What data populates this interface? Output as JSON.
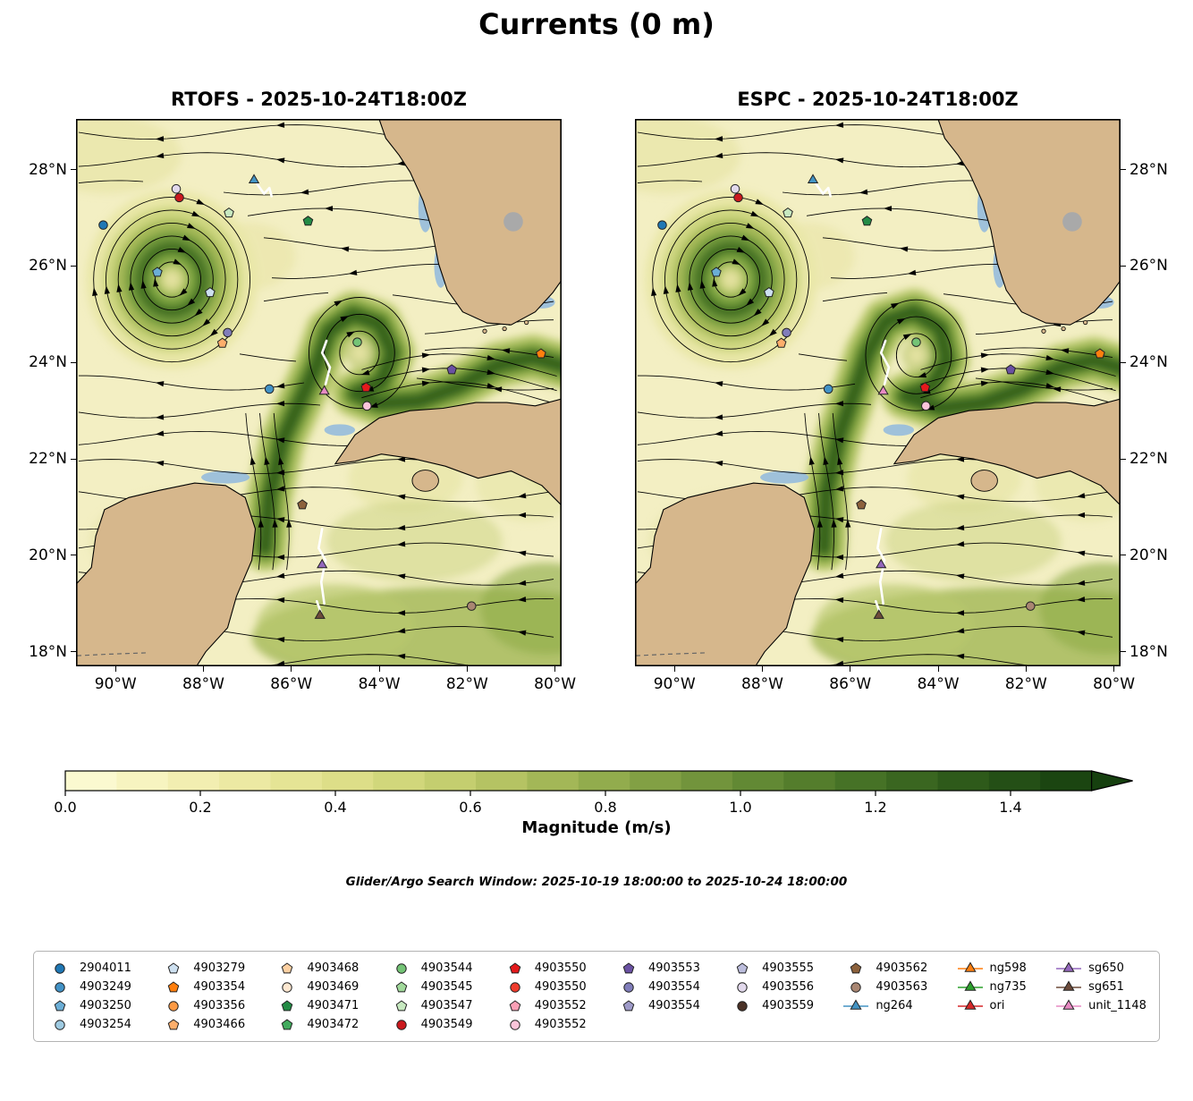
{
  "title": "Currents (0 m)",
  "panels": [
    {
      "title": "RTOFS - 2025-10-24T18:00Z"
    },
    {
      "title": "ESPC - 2025-10-24T18:00Z"
    }
  ],
  "axes": {
    "lon_view_w": [
      90.9,
      79.85
    ],
    "lat_view": [
      29.05,
      17.7
    ],
    "lon_ticks": [
      {
        "value": 90,
        "label": "90°W"
      },
      {
        "value": 88,
        "label": "88°W"
      },
      {
        "value": 86,
        "label": "86°W"
      },
      {
        "value": 84,
        "label": "84°W"
      },
      {
        "value": 82,
        "label": "82°W"
      },
      {
        "value": 80,
        "label": "80°W"
      }
    ],
    "lat_ticks": [
      {
        "value": 28,
        "label": "28°N"
      },
      {
        "value": 26,
        "label": "26°N"
      },
      {
        "value": 24,
        "label": "24°N"
      },
      {
        "value": 22,
        "label": "22°N"
      },
      {
        "value": 20,
        "label": "20°N"
      },
      {
        "value": 18,
        "label": "18°N"
      }
    ]
  },
  "colorbar": {
    "label": "Magnitude (m/s)",
    "bar_max": 1.52,
    "ticks": [
      {
        "value": 0.0,
        "label": "0.0"
      },
      {
        "value": 0.2,
        "label": "0.2"
      },
      {
        "value": 0.4,
        "label": "0.4"
      },
      {
        "value": 0.6,
        "label": "0.6"
      },
      {
        "value": 0.8,
        "label": "0.8"
      },
      {
        "value": 1.0,
        "label": "1.0"
      },
      {
        "value": 1.2,
        "label": "1.2"
      },
      {
        "value": 1.4,
        "label": "1.4"
      }
    ],
    "stops": [
      [
        0.0,
        "#fdfcd8"
      ],
      [
        0.15,
        "#f5f1b9"
      ],
      [
        0.3,
        "#eae79c"
      ],
      [
        0.45,
        "#d9dc82"
      ],
      [
        0.6,
        "#bfca6a"
      ],
      [
        0.75,
        "#9db353"
      ],
      [
        0.9,
        "#7c9c41"
      ],
      [
        1.05,
        "#5d8531"
      ],
      [
        1.2,
        "#426f24"
      ],
      [
        1.35,
        "#2b5719"
      ],
      [
        1.52,
        "#16400f"
      ]
    ]
  },
  "search_window_text": "Glider/Argo Search Window: 2025-10-19 18:00:00 to 2025-10-24 18:00:00",
  "legend": {
    "columns": [
      [
        {
          "label": "2904011",
          "shape": "circle",
          "color": "#1f77b4"
        },
        {
          "label": "4903249",
          "shape": "circle",
          "color": "#4292c6"
        },
        {
          "label": "4903250",
          "shape": "pentagon",
          "color": "#6baed6"
        },
        {
          "label": "4903254",
          "shape": "circle",
          "color": "#9ecae1"
        }
      ],
      [
        {
          "label": "4903279",
          "shape": "pentagon",
          "color": "#cde0f0"
        },
        {
          "label": "4903354",
          "shape": "pentagon",
          "color": "#ff7f0e"
        },
        {
          "label": "4903356",
          "shape": "circle",
          "color": "#fd9a44"
        },
        {
          "label": "4903466",
          "shape": "pentagon",
          "color": "#fdae6b"
        }
      ],
      [
        {
          "label": "4903468",
          "shape": "pentagon",
          "color": "#fdd0a2"
        },
        {
          "label": "4903469",
          "shape": "circle",
          "color": "#fee8d1"
        },
        {
          "label": "4903471",
          "shape": "pentagon",
          "color": "#238b45"
        },
        {
          "label": "4903472",
          "shape": "pentagon",
          "color": "#41ab5d"
        }
      ],
      [
        {
          "label": "4903544",
          "shape": "circle",
          "color": "#74c476"
        },
        {
          "label": "4903545",
          "shape": "pentagon",
          "color": "#a1d99b"
        },
        {
          "label": "4903547",
          "shape": "pentagon",
          "color": "#c7e9c0"
        },
        {
          "label": "4903549",
          "shape": "circle",
          "color": "#cb181d"
        }
      ],
      [
        {
          "label": "4903550",
          "shape": "pentagon",
          "color": "#e41a1c"
        },
        {
          "label": "4903550",
          "shape": "circle",
          "color": "#ef3b2c"
        },
        {
          "label": "4903552",
          "shape": "pentagon",
          "color": "#fa9fb5"
        },
        {
          "label": "4903552",
          "shape": "circle",
          "color": "#fcc5da"
        }
      ],
      [
        {
          "label": "4903553",
          "shape": "pentagon",
          "color": "#6a51a3"
        },
        {
          "label": "4903554",
          "shape": "circle",
          "color": "#807dba"
        },
        {
          "label": "4903554",
          "shape": "pentagon",
          "color": "#9e9ac8"
        }
      ],
      [
        {
          "label": "4903555",
          "shape": "pentagon",
          "color": "#bcbddc"
        },
        {
          "label": "4903556",
          "shape": "circle",
          "color": "#e2d9ec"
        },
        {
          "label": "4903559",
          "shape": "circle",
          "color": "#4a3126"
        }
      ],
      [
        {
          "label": "4903562",
          "shape": "pentagon",
          "color": "#8c613c"
        },
        {
          "label": "4903563",
          "shape": "circle",
          "color": "#a98672"
        },
        {
          "label": "ng264",
          "shape": "triangle",
          "color": "#4393c3",
          "glider": true
        }
      ],
      [
        {
          "label": "ng598",
          "shape": "triangle",
          "color": "#ff7f0e",
          "glider": true
        },
        {
          "label": "ng735",
          "shape": "triangle",
          "color": "#2ca02c",
          "glider": true
        },
        {
          "label": "ori",
          "shape": "triangle",
          "color": "#d62728",
          "glider": true
        }
      ],
      [
        {
          "label": "sg650",
          "shape": "triangle",
          "color": "#9467bd",
          "glider": true
        },
        {
          "label": "sg651",
          "shape": "triangle",
          "color": "#6d4b3a",
          "glider": true
        },
        {
          "label": "unit_1148",
          "shape": "triangle",
          "color": "#e78ac3",
          "glider": true
        }
      ]
    ]
  },
  "chart_data": {
    "type": "heatmap",
    "title": "Currents (0 m)",
    "depth_m": 0,
    "panels": [
      {
        "model": "RTOFS",
        "valid_time": "2025-10-24T18:00Z"
      },
      {
        "model": "ESPC",
        "valid_time": "2025-10-24T18:00Z"
      }
    ],
    "x_axis": {
      "unit": "°W",
      "ticks": [
        90,
        88,
        86,
        84,
        82,
        80
      ],
      "range_w": [
        90.9,
        79.85
      ]
    },
    "y_axis": {
      "unit": "°N",
      "ticks": [
        28,
        26,
        24,
        22,
        20,
        18
      ],
      "range_n": [
        17.7,
        29.05
      ]
    },
    "color_scale": {
      "label": "Magnitude (m/s)",
      "min": 0.0,
      "max": 1.5,
      "tick_step": 0.2
    },
    "search_window": {
      "start": "2025-10-19 18:00:00",
      "end": "2025-10-24 18:00:00"
    },
    "field_features": {
      "anticyclonic_eddy": {
        "lon_w": 88.72,
        "lat_n": 25.72,
        "radius_deg": 1.8,
        "peak_magnitude_mps": 1.2
      },
      "yucatan_current": {
        "lon_w": 86.55,
        "lat_span_n": [
          19.7,
          23.0
        ],
        "direction": "northward"
      },
      "caribbean_current": {
        "lat_n": 18.5,
        "lon_w_span": [
          87.5,
          79.9
        ],
        "direction": "westward"
      },
      "loop_current_rtofs": {
        "ring_center": [
          84.45,
          24.2
        ],
        "path_lon_w_lat_n": [
          [
            86.6,
            20.15
          ],
          [
            86.5,
            21.2
          ],
          [
            86.2,
            22.4
          ],
          [
            85.75,
            23.3
          ],
          [
            85.4,
            24.0
          ],
          [
            85.15,
            24.65
          ],
          [
            84.6,
            25.0
          ],
          [
            84.0,
            24.8
          ],
          [
            83.7,
            24.2
          ],
          [
            83.95,
            23.6
          ],
          [
            84.55,
            23.35
          ],
          [
            84.0,
            23.15
          ],
          [
            83.1,
            23.2
          ],
          [
            82.2,
            23.5
          ],
          [
            81.3,
            23.95
          ],
          [
            80.5,
            24.1
          ],
          [
            79.7,
            23.9
          ]
        ]
      },
      "loop_current_espc": {
        "ring_center": [
          84.5,
          24.15
        ],
        "path_lon_w_lat_n": [
          [
            86.6,
            20.15
          ],
          [
            86.55,
            21.3
          ],
          [
            86.25,
            22.5
          ],
          [
            85.9,
            23.4
          ],
          [
            85.6,
            24.2
          ],
          [
            85.2,
            24.85
          ],
          [
            84.55,
            25.05
          ],
          [
            83.95,
            24.7
          ],
          [
            83.8,
            24.05
          ],
          [
            84.15,
            23.5
          ],
          [
            84.75,
            23.3
          ],
          [
            83.95,
            23.05
          ],
          [
            83.0,
            23.15
          ],
          [
            82.1,
            23.45
          ],
          [
            81.2,
            23.9
          ],
          [
            80.45,
            24.05
          ],
          [
            79.7,
            23.85
          ]
        ]
      }
    },
    "markers": [
      {
        "id": "2904011",
        "shape": "circle",
        "color": "#1f77b4",
        "lon_w": 90.28,
        "lat_n": 26.85
      },
      {
        "id": "4903556",
        "shape": "circle",
        "color": "#e2d9ec",
        "lon_w": 88.62,
        "lat_n": 27.6
      },
      {
        "id": "4903549",
        "shape": "circle",
        "color": "#cb181d",
        "lon_w": 88.55,
        "lat_n": 27.42
      },
      {
        "id": "ng264",
        "shape": "triangle",
        "color": "#4393c3",
        "lon_w": 86.85,
        "lat_n": 27.78
      },
      {
        "id": "4903547",
        "shape": "pentagon",
        "color": "#c7e9c0",
        "lon_w": 87.42,
        "lat_n": 27.1
      },
      {
        "id": "4903471",
        "shape": "pentagon",
        "color": "#238b45",
        "lon_w": 85.62,
        "lat_n": 26.93
      },
      {
        "id": "4903250",
        "shape": "pentagon",
        "color": "#6baed6",
        "lon_w": 89.05,
        "lat_n": 25.87
      },
      {
        "id": "4903279",
        "shape": "pentagon",
        "color": "#cde0f0",
        "lon_w": 87.85,
        "lat_n": 25.45
      },
      {
        "id": "4903554",
        "shape": "circle",
        "color": "#807dba",
        "lon_w": 87.45,
        "lat_n": 24.62
      },
      {
        "id": "4903466",
        "shape": "pentagon",
        "color": "#fdae6b",
        "lon_w": 87.57,
        "lat_n": 24.4
      },
      {
        "id": "4903544",
        "shape": "circle",
        "color": "#74c476",
        "lon_w": 84.5,
        "lat_n": 24.42
      },
      {
        "id": "4903354",
        "shape": "pentagon",
        "color": "#ff7f0e",
        "lon_w": 80.32,
        "lat_n": 24.18
      },
      {
        "id": "4903553",
        "shape": "pentagon",
        "color": "#6a51a3",
        "lon_w": 82.35,
        "lat_n": 23.85
      },
      {
        "id": "4903249",
        "shape": "circle",
        "color": "#4292c6",
        "lon_w": 86.5,
        "lat_n": 23.45
      },
      {
        "id": "unit_1148",
        "shape": "triangle",
        "color": "#e78ac3",
        "lon_w": 85.25,
        "lat_n": 23.4
      },
      {
        "id": "4903550",
        "shape": "pentagon",
        "color": "#e41a1c",
        "lon_w": 84.3,
        "lat_n": 23.48
      },
      {
        "id": "4903552",
        "shape": "circle",
        "color": "#fcc5da",
        "lon_w": 84.28,
        "lat_n": 23.1
      },
      {
        "id": "4903562",
        "shape": "pentagon",
        "color": "#8c613c",
        "lon_w": 85.75,
        "lat_n": 21.05
      },
      {
        "id": "sg650",
        "shape": "triangle",
        "color": "#9467bd",
        "lon_w": 85.3,
        "lat_n": 19.8
      },
      {
        "id": "4903563",
        "shape": "circle",
        "color": "#a98672",
        "lon_w": 81.9,
        "lat_n": 18.95
      },
      {
        "id": "sg651",
        "shape": "triangle",
        "color": "#6d4b3a",
        "lon_w": 85.35,
        "lat_n": 18.75
      }
    ],
    "tracks": [
      {
        "id": "ng264",
        "points": [
          [
            86.78,
            27.7
          ],
          [
            86.62,
            27.5
          ],
          [
            86.5,
            27.62
          ],
          [
            86.45,
            27.45
          ]
        ]
      },
      {
        "id": "unit_1148",
        "points": [
          [
            85.22,
            23.55
          ],
          [
            85.12,
            23.9
          ],
          [
            85.3,
            24.2
          ],
          [
            85.2,
            24.45
          ]
        ]
      },
      {
        "id": "sg650",
        "points": [
          [
            85.3,
            20.55
          ],
          [
            85.38,
            20.15
          ],
          [
            85.22,
            19.9
          ],
          [
            85.32,
            19.45
          ],
          [
            85.25,
            19.0
          ]
        ]
      },
      {
        "id": "sg651",
        "points": [
          [
            85.42,
            19.05
          ],
          [
            85.33,
            18.82
          ]
        ]
      }
    ]
  }
}
